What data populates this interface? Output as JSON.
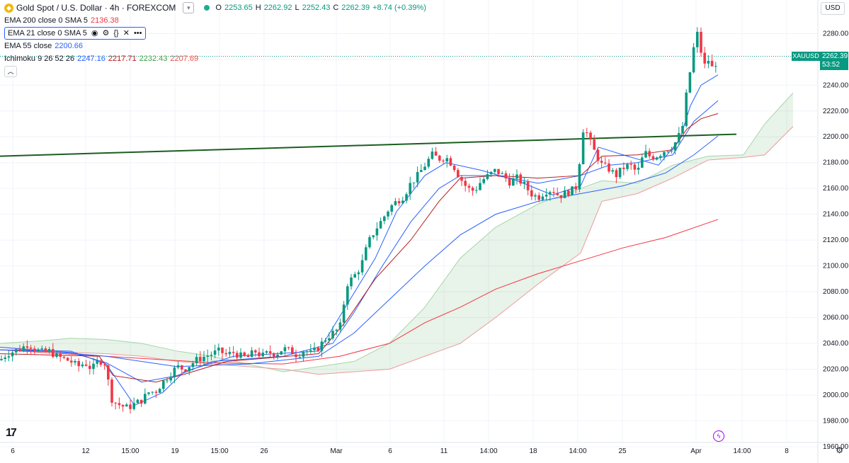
{
  "header": {
    "symbol_title": "Gold Spot / U.S. Dollar · 4h · FOREXCOM",
    "open_label": "O",
    "open": "2253.65",
    "high_label": "H",
    "high": "2262.92",
    "low_label": "L",
    "low": "2252.43",
    "close_label": "C",
    "close": "2262.39",
    "change": "+8.74 (+0.39%)"
  },
  "indicators": [
    {
      "label": "EMA 200 close 0 SMA 5",
      "value": "2136.38",
      "color": "#f23645"
    },
    {
      "label": "EMA 21 close 0 SMA 5",
      "value": "",
      "color": "#2962ff"
    },
    {
      "label": "EMA 55 close",
      "value": "2200.66",
      "color": "#2962ff"
    },
    {
      "label": "Ichimoku 9 26 52 26",
      "values": [
        "2247.16",
        "2217.71",
        "2232.43",
        "2207.69"
      ],
      "colors": [
        "#2962ff",
        "#b71c1c",
        "#43a047",
        "#ef5350"
      ]
    }
  ],
  "currency_button": "USD",
  "price_tag": {
    "symbol": "XAUUSD",
    "price": "2262.39",
    "countdown": "53:52"
  },
  "colors": {
    "up": "#089981",
    "down": "#f23645",
    "trendline": "#1b5e20"
  },
  "chart_data": {
    "type": "candlestick",
    "symbol": "XAUUSD",
    "timeframe": "4h",
    "ylim": [
      1955,
      2295
    ],
    "y_ticks": [
      "2280.00",
      "2260.00",
      "2240.00",
      "2220.00",
      "2200.00",
      "2180.00",
      "2160.00",
      "2140.00",
      "2120.00",
      "2100.00",
      "2080.00",
      "2060.00",
      "2040.00",
      "2020.00",
      "2000.00",
      "1980.00",
      "1960.00"
    ],
    "x_ticks": [
      "6",
      "12",
      "15:00",
      "19",
      "15:00",
      "26",
      "Mar",
      "6",
      "11",
      "14:00",
      "18",
      "14:00",
      "25",
      "Apr",
      "14:00",
      "8"
    ],
    "price_anchors": [
      [
        0,
        2027
      ],
      [
        10,
        2032
      ],
      [
        20,
        2034
      ],
      [
        30,
        2036
      ],
      [
        40,
        2040
      ],
      [
        50,
        2035
      ],
      [
        60,
        2033
      ],
      [
        70,
        2034
      ],
      [
        80,
        2030
      ],
      [
        90,
        2028
      ],
      [
        100,
        2026
      ],
      [
        110,
        2022
      ],
      [
        120,
        2025
      ],
      [
        130,
        2020
      ],
      [
        140,
        2027
      ],
      [
        150,
        2024
      ],
      [
        155,
        2000
      ],
      [
        160,
        1995
      ],
      [
        170,
        1992
      ],
      [
        180,
        1990
      ],
      [
        190,
        1993
      ],
      [
        200,
        1996
      ],
      [
        210,
        2002
      ],
      [
        220,
        2003
      ],
      [
        230,
        2010
      ],
      [
        240,
        2016
      ],
      [
        250,
        2022
      ],
      [
        260,
        2020
      ],
      [
        270,
        2024
      ],
      [
        280,
        2028
      ],
      [
        290,
        2030
      ],
      [
        300,
        2032
      ],
      [
        310,
        2034
      ],
      [
        320,
        2031
      ],
      [
        330,
        2033
      ],
      [
        340,
        2030
      ],
      [
        350,
        2029
      ],
      [
        360,
        2034
      ],
      [
        370,
        2030
      ],
      [
        380,
        2033
      ],
      [
        390,
        2032
      ],
      [
        400,
        2036
      ],
      [
        410,
        2034
      ],
      [
        420,
        2031
      ],
      [
        430,
        2035
      ],
      [
        440,
        2032
      ],
      [
        450,
        2037
      ],
      [
        460,
        2044
      ],
      [
        470,
        2048
      ],
      [
        480,
        2052
      ],
      [
        490,
        2086
      ],
      [
        500,
        2092
      ],
      [
        510,
        2100
      ],
      [
        520,
        2118
      ],
      [
        530,
        2128
      ],
      [
        540,
        2136
      ],
      [
        550,
        2145
      ],
      [
        560,
        2150
      ],
      [
        570,
        2154
      ],
      [
        580,
        2164
      ],
      [
        590,
        2170
      ],
      [
        600,
        2178
      ],
      [
        610,
        2186
      ],
      [
        620,
        2183
      ],
      [
        630,
        2184
      ],
      [
        640,
        2178
      ],
      [
        650,
        2168
      ],
      [
        660,
        2160
      ],
      [
        670,
        2158
      ],
      [
        680,
        2166
      ],
      [
        690,
        2170
      ],
      [
        700,
        2174
      ],
      [
        710,
        2170
      ],
      [
        720,
        2165
      ],
      [
        730,
        2168
      ],
      [
        740,
        2163
      ],
      [
        750,
        2156
      ],
      [
        760,
        2153
      ],
      [
        770,
        2158
      ],
      [
        780,
        2159
      ],
      [
        790,
        2154
      ],
      [
        800,
        2157
      ],
      [
        810,
        2159
      ],
      [
        815,
        2162
      ],
      [
        820,
        2190
      ],
      [
        825,
        2212
      ],
      [
        830,
        2200
      ],
      [
        840,
        2188
      ],
      [
        850,
        2178
      ],
      [
        860,
        2175
      ],
      [
        870,
        2170
      ],
      [
        880,
        2176
      ],
      [
        890,
        2178
      ],
      [
        900,
        2172
      ],
      [
        910,
        2188
      ],
      [
        920,
        2184
      ],
      [
        930,
        2186
      ],
      [
        940,
        2190
      ],
      [
        950,
        2192
      ],
      [
        960,
        2202
      ],
      [
        965,
        2210
      ],
      [
        970,
        2236
      ],
      [
        975,
        2252
      ],
      [
        980,
        2270
      ],
      [
        985,
        2280
      ],
      [
        990,
        2266
      ],
      [
        995,
        2255
      ],
      [
        1000,
        2260
      ],
      [
        1005,
        2253
      ],
      [
        1010,
        2256
      ],
      [
        1014,
        2262.39
      ]
    ],
    "trendline": [
      [
        0,
        2185
      ],
      [
        1040,
        2202
      ]
    ],
    "lines": [
      {
        "name": "EMA 200",
        "color": "#f23645",
        "points": [
          [
            0,
            2035
          ],
          [
            150,
            2030
          ],
          [
            300,
            2025
          ],
          [
            400,
            2024
          ],
          [
            480,
            2030
          ],
          [
            550,
            2040
          ],
          [
            600,
            2056
          ],
          [
            650,
            2068
          ],
          [
            700,
            2082
          ],
          [
            760,
            2094
          ],
          [
            820,
            2104
          ],
          [
            880,
            2114
          ],
          [
            940,
            2122
          ],
          [
            1014,
            2136
          ]
        ]
      },
      {
        "name": "EMA 55",
        "color": "#2962ff",
        "points": [
          [
            0,
            2037
          ],
          [
            150,
            2030
          ],
          [
            250,
            2022
          ],
          [
            350,
            2024
          ],
          [
            450,
            2030
          ],
          [
            500,
            2048
          ],
          [
            550,
            2074
          ],
          [
            600,
            2100
          ],
          [
            650,
            2124
          ],
          [
            700,
            2140
          ],
          [
            760,
            2150
          ],
          [
            820,
            2156
          ],
          [
            880,
            2162
          ],
          [
            940,
            2172
          ],
          [
            980,
            2186
          ],
          [
            1014,
            2200.66
          ]
        ]
      },
      {
        "name": "EMA 21",
        "color": "#2962ff",
        "points": [
          [
            0,
            2035
          ],
          [
            100,
            2033
          ],
          [
            150,
            2025
          ],
          [
            200,
            2010
          ],
          [
            250,
            2015
          ],
          [
            300,
            2026
          ],
          [
            400,
            2030
          ],
          [
            470,
            2040
          ],
          [
            500,
            2064
          ],
          [
            540,
            2100
          ],
          [
            580,
            2134
          ],
          [
            620,
            2160
          ],
          [
            650,
            2170
          ],
          [
            700,
            2170
          ],
          [
            760,
            2164
          ],
          [
            820,
            2170
          ],
          [
            860,
            2178
          ],
          [
            900,
            2180
          ],
          [
            950,
            2186
          ],
          [
            980,
            2212
          ],
          [
            1014,
            2228
          ]
        ]
      },
      {
        "name": "Tenkan",
        "color": "#2962ff",
        "points": [
          [
            0,
            2035
          ],
          [
            100,
            2034
          ],
          [
            150,
            2024
          ],
          [
            190,
            1992
          ],
          [
            230,
            2002
          ],
          [
            260,
            2018
          ],
          [
            330,
            2030
          ],
          [
            450,
            2034
          ],
          [
            490,
            2070
          ],
          [
            530,
            2106
          ],
          [
            560,
            2142
          ],
          [
            600,
            2170
          ],
          [
            630,
            2180
          ],
          [
            680,
            2174
          ],
          [
            730,
            2166
          ],
          [
            780,
            2155
          ],
          [
            820,
            2162
          ],
          [
            845,
            2192
          ],
          [
            880,
            2186
          ],
          [
            930,
            2178
          ],
          [
            960,
            2198
          ],
          [
            975,
            2224
          ],
          [
            990,
            2240
          ],
          [
            1014,
            2248
          ]
        ]
      },
      {
        "name": "Kijun",
        "color": "#b71c1c",
        "points": [
          [
            0,
            2032
          ],
          [
            140,
            2030
          ],
          [
            160,
            2015
          ],
          [
            220,
            2010
          ],
          [
            260,
            2016
          ],
          [
            320,
            2026
          ],
          [
            450,
            2032
          ],
          [
            490,
            2058
          ],
          [
            530,
            2090
          ],
          [
            580,
            2120
          ],
          [
            620,
            2150
          ],
          [
            650,
            2168
          ],
          [
            700,
            2170
          ],
          [
            760,
            2168
          ],
          [
            820,
            2170
          ],
          [
            850,
            2185
          ],
          [
            900,
            2186
          ],
          [
            950,
            2190
          ],
          [
            970,
            2206
          ],
          [
            990,
            2214
          ],
          [
            1014,
            2218
          ]
        ]
      }
    ],
    "cloud": [
      [
        0,
        2040,
        2037
      ],
      [
        60,
        2042,
        2035
      ],
      [
        100,
        2044,
        2033
      ],
      [
        150,
        2043,
        2032
      ],
      [
        200,
        2040,
        2030
      ],
      [
        250,
        2034,
        2026
      ],
      [
        300,
        2030,
        2024
      ],
      [
        350,
        2024,
        2022
      ],
      [
        400,
        2018,
        2020
      ],
      [
        450,
        2022,
        2016
      ],
      [
        500,
        2026,
        2018
      ],
      [
        550,
        2040,
        2020
      ],
      [
        600,
        2068,
        2030
      ],
      [
        650,
        2106,
        2040
      ],
      [
        700,
        2130,
        2060
      ],
      [
        760,
        2148,
        2086
      ],
      [
        820,
        2160,
        2110
      ],
      [
        850,
        2166,
        2150
      ],
      [
        900,
        2164,
        2156
      ],
      [
        950,
        2178,
        2168
      ],
      [
        1000,
        2185,
        2182
      ],
      [
        1050,
        2186,
        2184
      ],
      [
        1080,
        2210,
        2186
      ],
      [
        1120,
        2234,
        2208
      ]
    ]
  }
}
